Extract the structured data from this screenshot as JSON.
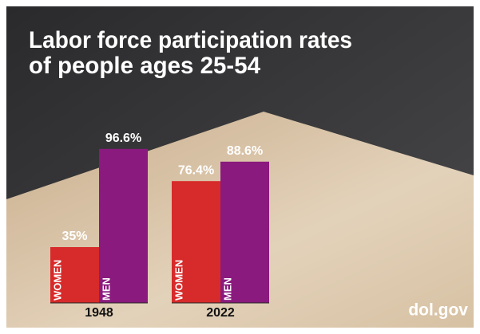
{
  "chart_data": {
    "type": "bar",
    "title": [
      "Labor force participation rates",
      "of people ages 25-54"
    ],
    "categories": [
      "1948",
      "2022"
    ],
    "series": [
      {
        "name": "WOMEN",
        "color": "#d72a2a",
        "values": [
          35,
          76.4
        ],
        "value_labels": [
          "35%",
          "76.4%"
        ]
      },
      {
        "name": "MEN",
        "color": "#8a1a7e",
        "values": [
          96.6,
          88.6
        ],
        "value_labels": [
          "96.6%",
          "88.6%"
        ]
      }
    ],
    "source": "dol.gov"
  }
}
